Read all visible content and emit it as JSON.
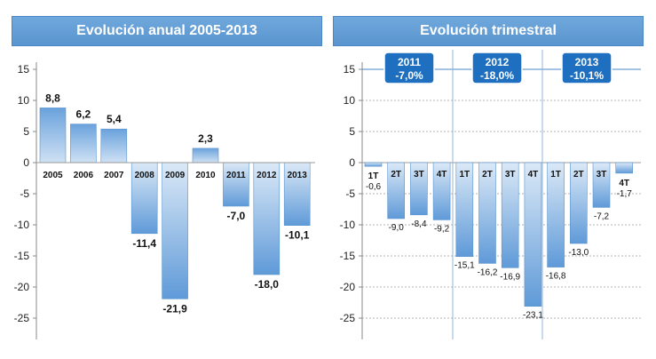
{
  "chart_data": [
    {
      "type": "bar",
      "title": "Evolución anual 2005-2013",
      "categories": [
        "2005",
        "2006",
        "2007",
        "2008",
        "2009",
        "2010",
        "2011",
        "2012",
        "2013"
      ],
      "values": [
        8.8,
        6.2,
        5.4,
        -11.4,
        -21.9,
        2.3,
        -7.0,
        -18.0,
        -10.1
      ],
      "value_labels": [
        "8,8",
        "6,2",
        "5,4",
        "-11,4",
        "-21,9",
        "2,3",
        "-7,0",
        "-18,0",
        "-10,1"
      ],
      "ylim": [
        -28,
        15
      ],
      "yticks": [
        15,
        10,
        5,
        0,
        -5,
        -10,
        -15,
        -20,
        -25
      ],
      "grid": false
    },
    {
      "type": "bar",
      "title": "Evolución trimestral",
      "categories": [
        "1T",
        "2T",
        "3T",
        "4T",
        "1T",
        "2T",
        "3T",
        "4T",
        "1T",
        "2T",
        "3T",
        "4T"
      ],
      "values": [
        -0.6,
        -9.0,
        -8.4,
        -9.2,
        -15.1,
        -16.2,
        -16.9,
        -23.1,
        -16.8,
        -13.0,
        -7.2,
        -1.7
      ],
      "value_labels": [
        "-0,6",
        "-9,0",
        "-8,4",
        "-9,2",
        "-15,1",
        "-16,2",
        "-16,9",
        "-23,1",
        "-16,8",
        "-13,0",
        "-7,2",
        "-1,7"
      ],
      "ylim": [
        -28,
        15
      ],
      "yticks": [
        15,
        10,
        5,
        0,
        -5,
        -10,
        -15,
        -20,
        -25
      ],
      "grid": true,
      "year_groups": [
        {
          "year": "2011",
          "total": "-7,0%"
        },
        {
          "year": "2012",
          "total": "-18,0%"
        },
        {
          "year": "2013",
          "total": "-10,1%"
        }
      ]
    }
  ],
  "colors": {
    "header": "#5b95cf",
    "bar_top": "#6aa2dc",
    "bar_bottom": "#dbe9f7",
    "year_box": "#1f6fc0",
    "separator": "#8fb4dc"
  }
}
